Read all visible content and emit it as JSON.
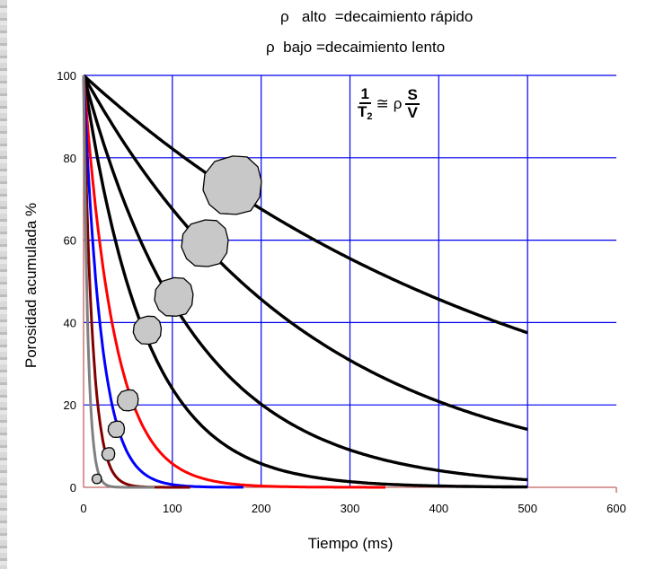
{
  "annotations": {
    "rho_high": "ρ   alto  =decaimiento rápido",
    "rho_low": "ρ  bajo =decaimiento lento"
  },
  "formula": {
    "lhs_num": "1",
    "lhs_den": "T",
    "lhs_den_sub": "2",
    "relation": "≅",
    "rho": "ρ",
    "rhs_num": "S",
    "rhs_den": "V"
  },
  "chart_data": {
    "type": "line",
    "xlabel": "Tiempo (ms)",
    "ylabel": "Porosidad acumulada %",
    "xlim": [
      0,
      600
    ],
    "ylim": [
      0,
      100
    ],
    "x_ticks": [
      0,
      100,
      200,
      300,
      400,
      500,
      600
    ],
    "y_ticks": [
      0,
      20,
      40,
      60,
      80,
      100
    ],
    "grid": true,
    "grid_color": "#0000ee",
    "axis_color": "#c06060",
    "series": [
      {
        "color": "#000000",
        "t2_ms": 510,
        "x_end": 500,
        "values": [
          100,
          82,
          67,
          55,
          46,
          38
        ]
      },
      {
        "color": "#000000",
        "t2_ms": 255,
        "x_end": 500,
        "values": [
          100,
          68,
          46,
          31,
          21,
          14
        ]
      },
      {
        "color": "#000000",
        "t2_ms": 125,
        "x_end": 500,
        "values": [
          100,
          45,
          20,
          9,
          4,
          2
        ]
      },
      {
        "color": "#000000",
        "t2_ms": 70,
        "x_end": 500,
        "values": [
          100,
          24,
          6,
          1,
          0,
          0
        ]
      },
      {
        "color": "#ff0000",
        "t2_ms": 35,
        "x_end": 340,
        "values": [
          100,
          6,
          0,
          0
        ]
      },
      {
        "color": "#0000ff",
        "t2_ms": 20,
        "x_end": 180,
        "values": [
          100,
          1,
          0
        ]
      },
      {
        "color": "#800000",
        "t2_ms": 10,
        "x_end": 120,
        "values": [
          100,
          0
        ]
      },
      {
        "color": "#808080",
        "t2_ms": 5,
        "x_end": 80,
        "values": [
          100,
          0
        ]
      }
    ],
    "pore_glyphs": [
      {
        "x": 168,
        "y": 73,
        "size": 1.0
      },
      {
        "x": 137,
        "y": 59,
        "size": 0.8
      },
      {
        "x": 102,
        "y": 46,
        "size": 0.66
      },
      {
        "x": 72,
        "y": 38,
        "size": 0.48
      },
      {
        "x": 50,
        "y": 21,
        "size": 0.36
      },
      {
        "x": 37,
        "y": 14,
        "size": 0.28
      },
      {
        "x": 28,
        "y": 8,
        "size": 0.22
      },
      {
        "x": 15,
        "y": 2,
        "size": 0.16
      }
    ]
  }
}
